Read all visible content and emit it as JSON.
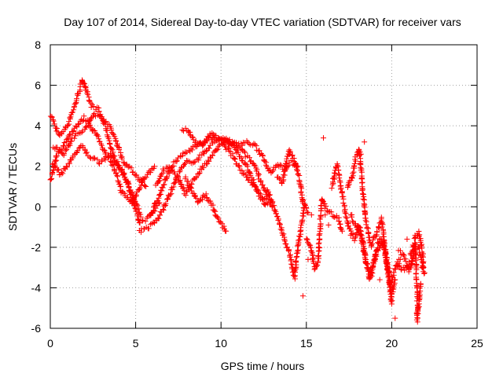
{
  "chart_data": {
    "type": "scatter",
    "title": "Day 107 of 2014, Sidereal Day-to-day VTEC variation (SDTVAR) for receiver vars",
    "xlabel": "GPS time / hours",
    "ylabel": "SDTVAR / TECUs",
    "xlim": [
      0,
      25
    ],
    "ylim": [
      -6,
      8
    ],
    "xticks": [
      0,
      5,
      10,
      15,
      20,
      25
    ],
    "yticks": [
      -6,
      -4,
      -2,
      0,
      2,
      4,
      6,
      8
    ],
    "grid": true,
    "marker": "+",
    "marker_color": "#ff0000",
    "tracks": [
      [
        [
          0.0,
          4.6
        ],
        [
          0.5,
          3.5
        ],
        [
          1.0,
          4.0
        ],
        [
          1.5,
          5.2
        ],
        [
          1.9,
          6.3
        ],
        [
          2.4,
          5.0
        ],
        [
          2.8,
          4.8
        ],
        [
          3.2,
          4.0
        ],
        [
          3.7,
          2.5
        ],
        [
          4.2,
          1.8
        ],
        [
          4.8,
          0.6
        ],
        [
          5.3,
          -0.5
        ]
      ],
      [
        [
          0.0,
          1.3
        ],
        [
          0.4,
          2.6
        ],
        [
          0.9,
          3.2
        ],
        [
          1.4,
          3.9
        ],
        [
          2.0,
          4.4
        ],
        [
          2.6,
          3.7
        ],
        [
          3.1,
          2.9
        ],
        [
          3.6,
          2.2
        ],
        [
          4.2,
          0.7
        ],
        [
          4.8,
          0.2
        ],
        [
          5.5,
          1.4
        ],
        [
          6.1,
          2.0
        ]
      ],
      [
        [
          0.1,
          2.2
        ],
        [
          0.6,
          1.6
        ],
        [
          1.2,
          2.3
        ],
        [
          1.8,
          3.0
        ],
        [
          2.3,
          2.5
        ],
        [
          2.9,
          2.2
        ],
        [
          3.5,
          2.6
        ],
        [
          4.0,
          2.0
        ],
        [
          4.5,
          1.3
        ],
        [
          5.2,
          -0.8
        ],
        [
          5.8,
          -0.5
        ],
        [
          6.4,
          0.2
        ]
      ],
      [
        [
          0.2,
          3.0
        ],
        [
          0.8,
          2.6
        ],
        [
          1.3,
          3.4
        ],
        [
          2.0,
          3.8
        ],
        [
          2.6,
          4.6
        ],
        [
          3.3,
          4.2
        ],
        [
          3.8,
          3.4
        ],
        [
          4.3,
          2.2
        ],
        [
          5.0,
          1.6
        ],
        [
          5.6,
          1.0
        ]
      ],
      [
        [
          5.2,
          -1.2
        ],
        [
          5.8,
          -1.0
        ],
        [
          6.3,
          -0.6
        ],
        [
          6.8,
          0.2
        ],
        [
          7.2,
          1.0
        ],
        [
          7.6,
          1.8
        ],
        [
          8.0,
          2.2
        ],
        [
          8.6,
          2.3
        ],
        [
          9.1,
          2.8
        ],
        [
          9.6,
          3.2
        ],
        [
          10.1,
          3.4
        ],
        [
          10.8,
          2.9
        ],
        [
          11.5,
          2.0
        ],
        [
          12.1,
          0.8
        ],
        [
          12.6,
          0.1
        ]
      ],
      [
        [
          5.9,
          -0.4
        ],
        [
          6.4,
          0.6
        ],
        [
          6.9,
          1.6
        ],
        [
          7.3,
          2.2
        ],
        [
          7.8,
          2.6
        ],
        [
          8.3,
          2.9
        ],
        [
          8.8,
          3.1
        ],
        [
          9.4,
          3.4
        ],
        [
          10.0,
          3.3
        ],
        [
          10.6,
          2.6
        ],
        [
          11.2,
          1.8
        ],
        [
          11.8,
          1.2
        ],
        [
          12.4,
          0.5
        ],
        [
          12.9,
          0.1
        ]
      ],
      [
        [
          6.2,
          1.0
        ],
        [
          6.6,
          1.8
        ],
        [
          7.0,
          2.0
        ],
        [
          7.5,
          1.4
        ],
        [
          7.9,
          0.6
        ],
        [
          8.3,
          1.2
        ],
        [
          8.8,
          1.8
        ],
        [
          9.3,
          2.3
        ],
        [
          9.8,
          2.9
        ],
        [
          10.3,
          3.3
        ],
        [
          10.9,
          3.1
        ],
        [
          11.4,
          2.6
        ],
        [
          12.0,
          2.0
        ],
        [
          12.5,
          0.9
        ],
        [
          13.0,
          0.0
        ]
      ],
      [
        [
          7.9,
          1.4
        ],
        [
          8.3,
          0.8
        ],
        [
          8.7,
          0.2
        ],
        [
          9.1,
          0.6
        ],
        [
          9.5,
          0.0
        ],
        [
          9.9,
          -0.7
        ],
        [
          10.3,
          -1.2
        ]
      ],
      [
        [
          7.7,
          3.8
        ],
        [
          8.0,
          3.8
        ],
        [
          8.4,
          3.3
        ],
        [
          8.9,
          3.0
        ],
        [
          9.4,
          3.6
        ],
        [
          9.9,
          3.4
        ],
        [
          10.4,
          3.2
        ],
        [
          10.9,
          3.0
        ],
        [
          11.5,
          3.2
        ],
        [
          12.0,
          3.0
        ],
        [
          12.5,
          2.4
        ],
        [
          12.9,
          1.7
        ],
        [
          13.3,
          2.1
        ],
        [
          13.7,
          1.9
        ],
        [
          14.1,
          2.2
        ],
        [
          14.5,
          2.0
        ]
      ],
      [
        [
          12.7,
          0.9
        ],
        [
          13.1,
          0.0
        ],
        [
          13.4,
          -0.8
        ],
        [
          13.8,
          -1.8
        ],
        [
          14.1,
          -2.6
        ],
        [
          14.3,
          -3.5
        ],
        [
          14.5,
          -2.0
        ],
        [
          14.7,
          -1.0
        ],
        [
          14.9,
          0.1
        ]
      ],
      [
        [
          13.3,
          1.5
        ],
        [
          13.6,
          1.2
        ],
        [
          14.0,
          2.8
        ],
        [
          14.3,
          2.3
        ],
        [
          14.6,
          1.3
        ],
        [
          14.8,
          0.2
        ],
        [
          15.1,
          -0.3
        ]
      ],
      [
        [
          15.0,
          -1.5
        ],
        [
          15.3,
          -2.2
        ],
        [
          15.5,
          -3.1
        ],
        [
          15.7,
          -2.6
        ],
        [
          15.9,
          0.4
        ],
        [
          16.1,
          0.0
        ],
        [
          16.4,
          -0.3
        ],
        [
          16.9,
          -0.6
        ],
        [
          17.1,
          -1.2
        ]
      ],
      [
        [
          16.5,
          1.0
        ],
        [
          16.8,
          2.1
        ],
        [
          17.1,
          0.6
        ],
        [
          17.3,
          -0.4
        ],
        [
          17.5,
          -1.1
        ],
        [
          17.8,
          -1.6
        ],
        [
          18.1,
          -0.9
        ],
        [
          18.4,
          -2.2
        ],
        [
          18.7,
          -3.6
        ],
        [
          19.0,
          -2.6
        ],
        [
          19.3,
          -1.5
        ],
        [
          19.6,
          -2.2
        ],
        [
          19.9,
          -3.9
        ],
        [
          20.2,
          -3.0
        ],
        [
          20.5,
          -2.6
        ]
      ],
      [
        [
          17.4,
          0.9
        ],
        [
          17.7,
          1.5
        ],
        [
          17.9,
          2.4
        ],
        [
          18.1,
          2.9
        ],
        [
          18.3,
          0.8
        ],
        [
          18.5,
          -0.8
        ],
        [
          18.8,
          -1.9
        ],
        [
          19.1,
          -1.3
        ],
        [
          19.4,
          -0.6
        ],
        [
          19.7,
          -2.7
        ],
        [
          20.0,
          -4.4
        ],
        [
          20.2,
          -3.6
        ]
      ],
      [
        [
          17.6,
          -0.4
        ],
        [
          17.9,
          -0.9
        ],
        [
          18.2,
          -1.4
        ],
        [
          18.5,
          -2.8
        ],
        [
          18.8,
          -3.4
        ],
        [
          19.1,
          -2.2
        ],
        [
          19.5,
          -1.7
        ],
        [
          19.8,
          -3.0
        ],
        [
          20.0,
          -4.8
        ]
      ],
      [
        [
          20.4,
          -2.2
        ],
        [
          20.7,
          -2.4
        ],
        [
          21.0,
          -3.2
        ],
        [
          21.2,
          -2.8
        ],
        [
          21.4,
          -1.4
        ],
        [
          21.6,
          -1.3
        ],
        [
          21.8,
          -2.2
        ],
        [
          21.9,
          -3.3
        ]
      ],
      [
        [
          20.3,
          -2.8
        ],
        [
          20.6,
          -3.1
        ],
        [
          20.9,
          -3.0
        ],
        [
          21.2,
          -2.6
        ],
        [
          21.4,
          -2.0
        ],
        [
          21.5,
          -4.6
        ],
        [
          21.5,
          -5.6
        ],
        [
          21.7,
          -3.8
        ]
      ],
      [
        [
          21.1,
          -2.4
        ],
        [
          21.3,
          -1.9
        ],
        [
          21.6,
          -2.0
        ],
        [
          21.8,
          -3.0
        ]
      ]
    ],
    "scatter_points": [
      [
        16.0,
        3.4
      ],
      [
        18.4,
        3.2
      ],
      [
        15.3,
        -0.4
      ],
      [
        16.1,
        -0.4
      ],
      [
        19.3,
        -3.6
      ],
      [
        20.9,
        -1.6
      ],
      [
        15.1,
        -2.6
      ],
      [
        14.8,
        -4.4
      ],
      [
        18.2,
        2.6
      ],
      [
        20.2,
        -5.5
      ],
      [
        16.3,
        -0.9
      ],
      [
        17.5,
        1.1
      ]
    ]
  }
}
